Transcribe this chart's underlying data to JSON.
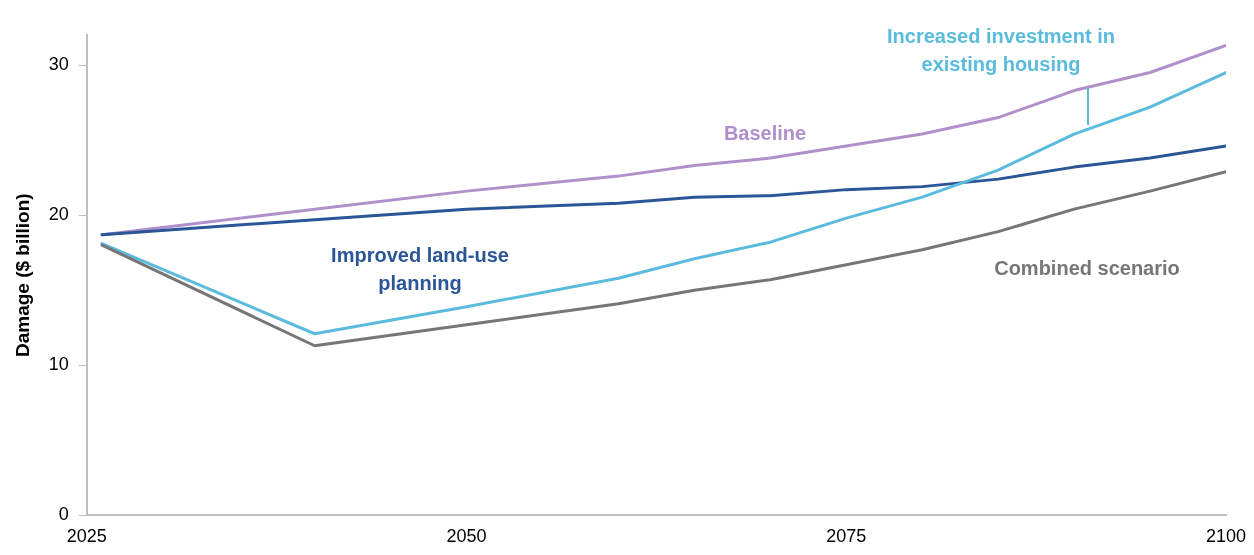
{
  "chart_data": {
    "type": "line",
    "ylabel": "Damage ($ billion)",
    "x": [
      2026,
      2040,
      2050,
      2060,
      2065,
      2070,
      2075,
      2080,
      2085,
      2090,
      2095,
      2100
    ],
    "xlim": [
      2025,
      2100
    ],
    "xticks": [
      2025,
      2050,
      2075,
      2100
    ],
    "ylim": [
      0,
      32
    ],
    "yticks": [
      0,
      10,
      20,
      30
    ],
    "grid": false,
    "legend": false,
    "marker": "none",
    "line_style": "solid",
    "series": [
      {
        "name": "Baseline",
        "color": "#b08fcb",
        "values": [
          18.7,
          20.4,
          21.6,
          22.6,
          23.3,
          23.8,
          24.6,
          25.4,
          26.5,
          28.3,
          29.5,
          31.3
        ]
      },
      {
        "name": "Improved land-use planning",
        "color": "#2a5597",
        "values": [
          18.7,
          19.7,
          20.4,
          20.8,
          21.2,
          21.3,
          21.7,
          21.9,
          22.4,
          23.2,
          23.8,
          24.6
        ]
      },
      {
        "name": "Increased investment in existing housing",
        "color": "#5bbbdc",
        "values": [
          18.1,
          12.1,
          13.9,
          15.8,
          17.1,
          18.2,
          19.8,
          21.2,
          23.0,
          25.4,
          27.2,
          29.5
        ]
      },
      {
        "name": "Combined scenario",
        "color": "#767676",
        "values": [
          18.0,
          11.3,
          12.7,
          14.1,
          15.0,
          15.7,
          16.7,
          17.7,
          18.9,
          20.4,
          21.6,
          22.9
        ]
      }
    ]
  }
}
